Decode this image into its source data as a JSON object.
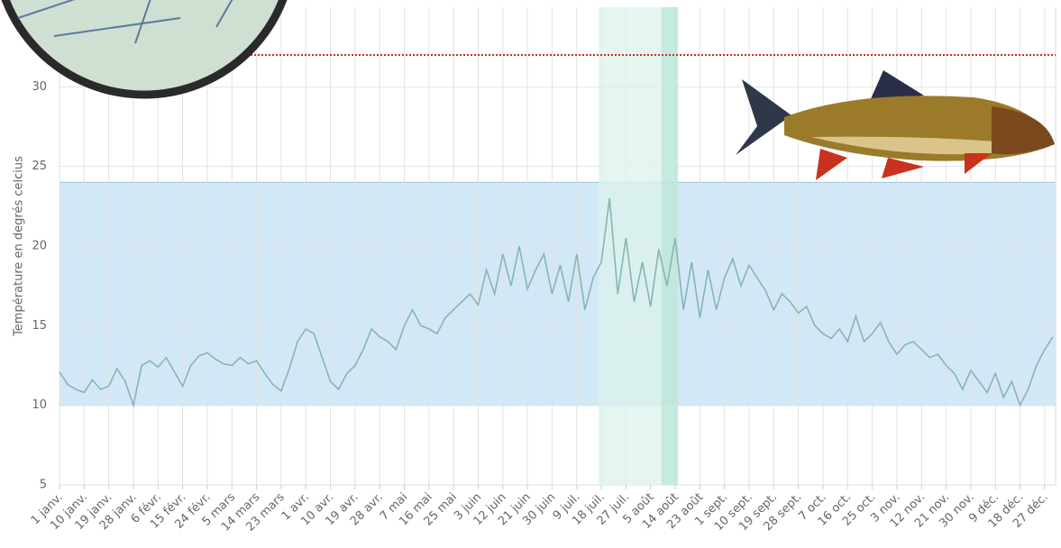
{
  "chart_data": {
    "type": "line",
    "y_label": "Température en degrés celcius",
    "x": [
      0,
      3,
      6,
      9,
      12,
      15,
      18,
      21,
      24,
      27,
      30,
      33,
      36,
      39,
      42,
      45,
      48,
      51,
      54,
      57,
      60,
      63,
      66,
      69,
      72,
      75,
      78,
      81,
      84,
      87,
      90,
      93,
      96,
      99,
      102,
      105,
      108,
      111,
      114,
      117,
      120,
      123,
      126,
      129,
      132,
      135,
      138,
      141,
      144,
      147,
      150,
      153,
      156,
      159,
      162,
      165,
      168,
      171,
      174,
      177,
      180,
      183,
      186,
      189,
      192,
      195,
      198,
      201,
      204,
      207,
      210,
      213,
      216,
      219,
      222,
      225,
      228,
      231,
      234,
      237,
      240,
      243,
      246,
      249,
      252,
      255,
      258,
      261,
      264,
      267,
      270,
      273,
      276,
      279,
      282,
      285,
      288,
      291,
      294,
      297,
      300,
      303,
      306,
      309,
      312,
      315,
      318,
      321,
      324,
      327,
      330,
      333,
      336,
      339,
      342,
      345,
      348,
      351,
      354,
      357,
      360,
      363
    ],
    "series": [
      {
        "color": "#86b5b5",
        "values": [
          12.1,
          11.3,
          11.0,
          10.8,
          11.6,
          11.0,
          11.2,
          12.3,
          11.5,
          10.0,
          12.5,
          12.8,
          12.4,
          13.0,
          12.1,
          11.2,
          12.5,
          13.1,
          13.3,
          12.9,
          12.6,
          12.5,
          13.0,
          12.6,
          12.8,
          12.0,
          11.3,
          10.9,
          12.3,
          14.0,
          14.8,
          14.5,
          13.0,
          11.5,
          11.0,
          12.0,
          12.5,
          13.5,
          14.8,
          14.3,
          14.0,
          13.5,
          15.0,
          16.0,
          15.0,
          14.8,
          14.5,
          15.5,
          16.0,
          16.5,
          17.0,
          16.3,
          18.5,
          17.0,
          19.5,
          17.5,
          20.0,
          17.3,
          18.5,
          19.5,
          17.0,
          18.8,
          16.5,
          19.5,
          16.0,
          18.0,
          19.0,
          23.0,
          17.0,
          20.5,
          16.5,
          19.0,
          16.2,
          19.8,
          17.5,
          20.5,
          16.0,
          19.0,
          15.5,
          18.5,
          16.0,
          18.0,
          19.2,
          17.5,
          18.8,
          18.0,
          17.2,
          16.0,
          17.0,
          16.5,
          15.8,
          16.2,
          15.0,
          14.5,
          14.2,
          14.8,
          14.0,
          15.6,
          14.0,
          14.5,
          15.2,
          14.0,
          13.2,
          13.8,
          14.0,
          13.5,
          13.0,
          13.2,
          12.5,
          12.0,
          11.0,
          12.2,
          11.5,
          10.8,
          12.0,
          10.5,
          11.5,
          10.0,
          11.0,
          12.5,
          13.5,
          14.3
        ]
      }
    ],
    "xlim": [
      0,
      364
    ],
    "ylim": [
      5,
      35
    ],
    "yticks": [
      5,
      10,
      15,
      20,
      25,
      30
    ],
    "xticks": [
      {
        "value": 0,
        "label": "1 janv."
      },
      {
        "value": 9,
        "label": "10 janv."
      },
      {
        "value": 18,
        "label": "19 janv."
      },
      {
        "value": 27,
        "label": "28 janv."
      },
      {
        "value": 36,
        "label": "6 févr."
      },
      {
        "value": 45,
        "label": "15 févr."
      },
      {
        "value": 54,
        "label": "24 févr."
      },
      {
        "value": 63,
        "label": "5 mars"
      },
      {
        "value": 72,
        "label": "14 mars"
      },
      {
        "value": 81,
        "label": "23 mars"
      },
      {
        "value": 90,
        "label": "1 avr."
      },
      {
        "value": 99,
        "label": "10 avr."
      },
      {
        "value": 108,
        "label": "19 avr."
      },
      {
        "value": 117,
        "label": "28 avr."
      },
      {
        "value": 126,
        "label": "7 mai"
      },
      {
        "value": 135,
        "label": "16 mai"
      },
      {
        "value": 144,
        "label": "25 mai"
      },
      {
        "value": 153,
        "label": "3 juin"
      },
      {
        "value": 162,
        "label": "12 juin"
      },
      {
        "value": 171,
        "label": "21 juin"
      },
      {
        "value": 180,
        "label": "30 juin"
      },
      {
        "value": 189,
        "label": "9 juil."
      },
      {
        "value": 198,
        "label": "18 juil."
      },
      {
        "value": 207,
        "label": "27 juil."
      },
      {
        "value": 216,
        "label": "5 août"
      },
      {
        "value": 225,
        "label": "14 août"
      },
      {
        "value": 234,
        "label": "23 août"
      },
      {
        "value": 243,
        "label": "1 sept."
      },
      {
        "value": 252,
        "label": "10 sept."
      },
      {
        "value": 261,
        "label": "19 sept."
      },
      {
        "value": 270,
        "label": "28 sept."
      },
      {
        "value": 279,
        "label": "7 oct."
      },
      {
        "value": 288,
        "label": "16 oct."
      },
      {
        "value": 297,
        "label": "25 oct."
      },
      {
        "value": 306,
        "label": "3 nov."
      },
      {
        "value": 315,
        "label": "12 nov."
      },
      {
        "value": 324,
        "label": "21 nov."
      },
      {
        "value": 333,
        "label": "30 nov."
      },
      {
        "value": 342,
        "label": "9 déc."
      },
      {
        "value": 351,
        "label": "18 déc."
      },
      {
        "value": 360,
        "label": "27 déc."
      }
    ],
    "grid": true,
    "y_band": {
      "from": 10,
      "to": 24,
      "color": "#d3e8f6"
    },
    "x_bands": [
      {
        "from": 197,
        "to": 226,
        "color": "#dcf3ec"
      },
      {
        "from": 220,
        "to": 226,
        "color": "#b9e6d8"
      }
    ],
    "threshold": {
      "value": 32,
      "color": "#c0302a"
    }
  }
}
